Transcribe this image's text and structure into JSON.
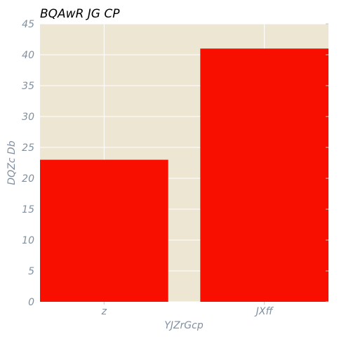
{
  "chart_data": {
    "type": "bar",
    "title": "BQAwR JG  CP",
    "xlabel": "YJZrGcp",
    "ylabel": "DQZc Db",
    "categories": [
      "z",
      "JXff"
    ],
    "values": [
      23,
      41
    ],
    "ylim": [
      0,
      45
    ],
    "yticks": [
      0,
      5,
      10,
      15,
      20,
      25,
      30,
      35,
      40,
      45
    ],
    "ytick_labels": [
      "0",
      "5",
      "10",
      "15",
      "20",
      "25",
      "30",
      "35",
      "40",
      "45"
    ],
    "grid": true,
    "legend": "none",
    "colors": {
      "bar": "#f80f00",
      "plot_background": "#ede6d3",
      "grid": "#ffffff",
      "tick_text": "#8090a0",
      "title_text": "#000000"
    }
  }
}
